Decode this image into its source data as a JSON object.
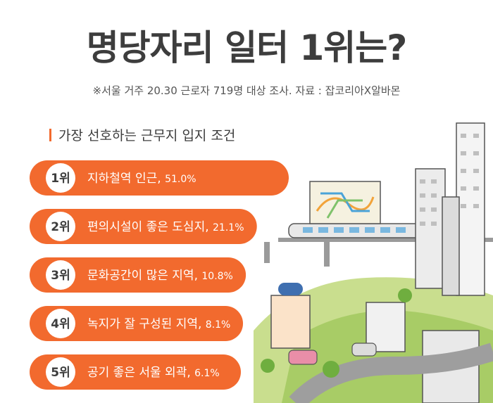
{
  "title": "명당자리 일터 1위는?",
  "subtitle": "※서울 거주 20.30 근로자 719명 대상 조사. 자료 : 잡코리아X알바몬",
  "section_title": "가장 선호하는 근무지 입지 조건",
  "colors": {
    "accent": "#f26a2e",
    "accent_dark": "#e45a20",
    "badge_bg": "#ffffff",
    "title_text": "#3d3d3d"
  },
  "chart_data": {
    "type": "bar",
    "title": "가장 선호하는 근무지 입지 조건",
    "categories": [
      "지하철역 인근",
      "편의시설이 좋은 도심지",
      "문화공간이 많은 지역",
      "녹지가 잘 구성된 지역",
      "공기 좋은 서울 외곽"
    ],
    "ranks": [
      "1위",
      "2위",
      "3위",
      "4위",
      "5위"
    ],
    "value_labels": [
      "51.0%",
      "21.1%",
      "10.8%",
      "8.1%",
      "6.1%"
    ],
    "values": [
      51.0,
      21.1,
      10.8,
      8.1,
      6.1
    ],
    "unit": "%"
  }
}
